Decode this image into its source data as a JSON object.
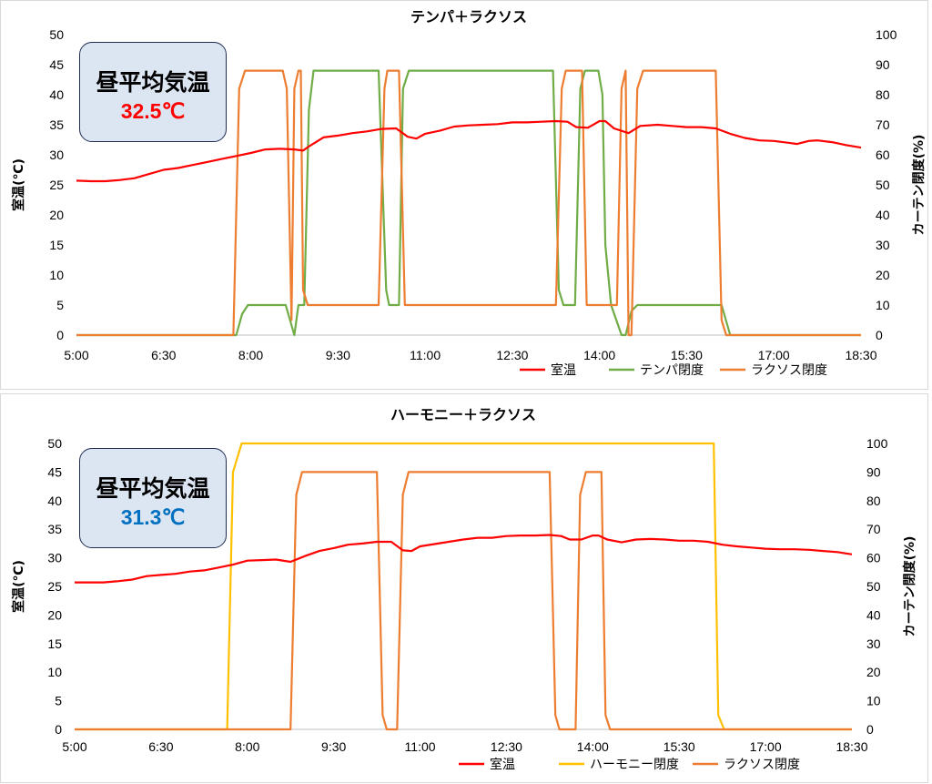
{
  "chart_data": [
    {
      "type": "line",
      "title": "テンパ＋ラクソス",
      "ylabel_left": "室温(℃)",
      "ylabel_right": "カーテン閉度(%)",
      "y_left_lim": [
        0,
        50
      ],
      "y_left_ticks": [
        "0",
        "5",
        "10",
        "15",
        "20",
        "25",
        "30",
        "35",
        "40",
        "45",
        "50"
      ],
      "y_right_lim": [
        0,
        100
      ],
      "y_right_ticks": [
        "0",
        "10",
        "20",
        "30",
        "40",
        "50",
        "60",
        "70",
        "80",
        "90",
        "100"
      ],
      "x_range_hours": [
        5,
        18.5
      ],
      "x_ticks": [
        {
          "h": 5,
          "label": "5:00"
        },
        {
          "h": 6.5,
          "label": "6:30"
        },
        {
          "h": 8,
          "label": "8:00"
        },
        {
          "h": 9.5,
          "label": "9:30"
        },
        {
          "h": 11,
          "label": "11:00"
        },
        {
          "h": 12.5,
          "label": "12:30"
        },
        {
          "h": 14,
          "label": "14:00"
        },
        {
          "h": 15.5,
          "label": "15:30"
        },
        {
          "h": 17,
          "label": "17:00"
        },
        {
          "h": 18.5,
          "label": "18:30"
        }
      ],
      "grid": "none",
      "legend_position": "bottom-right",
      "annotation": {
        "label": "昼平均気温",
        "value": "32.5℃",
        "color": "#ff0000"
      },
      "series": [
        {
          "name": "室温",
          "axis": "left",
          "color": "#ff0000",
          "points": [
            [
              5.0,
              25.7
            ],
            [
              5.25,
              25.6
            ],
            [
              5.5,
              25.6
            ],
            [
              5.75,
              25.8
            ],
            [
              6.0,
              26.1
            ],
            [
              6.25,
              26.8
            ],
            [
              6.5,
              27.5
            ],
            [
              6.75,
              27.8
            ],
            [
              7.0,
              28.3
            ],
            [
              7.25,
              28.8
            ],
            [
              7.5,
              29.3
            ],
            [
              7.75,
              29.8
            ],
            [
              8.0,
              30.3
            ],
            [
              8.25,
              30.9
            ],
            [
              8.5,
              31.0
            ],
            [
              8.75,
              30.9
            ],
            [
              8.9,
              30.7
            ],
            [
              9.0,
              31.4
            ],
            [
              9.25,
              32.9
            ],
            [
              9.5,
              33.2
            ],
            [
              9.75,
              33.6
            ],
            [
              10.0,
              33.9
            ],
            [
              10.25,
              34.3
            ],
            [
              10.5,
              34.4
            ],
            [
              10.7,
              33.0
            ],
            [
              10.85,
              32.7
            ],
            [
              11.0,
              33.5
            ],
            [
              11.25,
              34.0
            ],
            [
              11.5,
              34.7
            ],
            [
              11.75,
              34.9
            ],
            [
              12.0,
              35.0
            ],
            [
              12.25,
              35.1
            ],
            [
              12.5,
              35.4
            ],
            [
              12.75,
              35.4
            ],
            [
              13.0,
              35.5
            ],
            [
              13.25,
              35.6
            ],
            [
              13.45,
              35.5
            ],
            [
              13.6,
              34.6
            ],
            [
              13.8,
              34.5
            ],
            [
              14.0,
              35.6
            ],
            [
              14.1,
              35.6
            ],
            [
              14.25,
              34.4
            ],
            [
              14.5,
              33.6
            ],
            [
              14.7,
              34.8
            ],
            [
              15.0,
              35.0
            ],
            [
              15.25,
              34.8
            ],
            [
              15.5,
              34.6
            ],
            [
              15.75,
              34.6
            ],
            [
              16.0,
              34.4
            ],
            [
              16.25,
              33.5
            ],
            [
              16.5,
              32.8
            ],
            [
              16.75,
              32.4
            ],
            [
              17.0,
              32.3
            ],
            [
              17.25,
              32.0
            ],
            [
              17.4,
              31.8
            ],
            [
              17.6,
              32.3
            ],
            [
              17.75,
              32.4
            ],
            [
              18.0,
              32.1
            ],
            [
              18.25,
              31.6
            ],
            [
              18.5,
              31.2
            ]
          ]
        },
        {
          "name": "テンパ閉度",
          "axis": "right",
          "color": "#70ad47",
          "points": [
            [
              5.0,
              0
            ],
            [
              7.2,
              0
            ],
            [
              7.75,
              0
            ],
            [
              7.85,
              7
            ],
            [
              7.95,
              10
            ],
            [
              8.6,
              10
            ],
            [
              8.75,
              0
            ],
            [
              8.82,
              10
            ],
            [
              8.92,
              10
            ],
            [
              9.0,
              75
            ],
            [
              9.08,
              88
            ],
            [
              10.2,
              88
            ],
            [
              10.33,
              15
            ],
            [
              10.38,
              10
            ],
            [
              10.55,
              10
            ],
            [
              10.62,
              82
            ],
            [
              10.72,
              88
            ],
            [
              13.2,
              88
            ],
            [
              13.3,
              15
            ],
            [
              13.38,
              10
            ],
            [
              13.58,
              10
            ],
            [
              13.67,
              82
            ],
            [
              13.75,
              88
            ],
            [
              13.98,
              88
            ],
            [
              14.05,
              80
            ],
            [
              14.1,
              30
            ],
            [
              14.2,
              10
            ],
            [
              14.38,
              0
            ],
            [
              14.45,
              0
            ],
            [
              14.55,
              8
            ],
            [
              14.65,
              10
            ],
            [
              16.1,
              10
            ],
            [
              16.25,
              0
            ],
            [
              18.5,
              0
            ]
          ]
        },
        {
          "name": "ラクソス閉度",
          "axis": "right",
          "color": "#ed7d31",
          "points": [
            [
              5.0,
              0
            ],
            [
              7.7,
              0
            ],
            [
              7.8,
              82
            ],
            [
              7.9,
              88
            ],
            [
              8.55,
              88
            ],
            [
              8.62,
              82
            ],
            [
              8.7,
              5
            ],
            [
              8.75,
              82
            ],
            [
              8.82,
              88
            ],
            [
              8.86,
              88
            ],
            [
              8.9,
              15
            ],
            [
              8.98,
              10
            ],
            [
              10.2,
              10
            ],
            [
              10.3,
              82
            ],
            [
              10.35,
              88
            ],
            [
              10.55,
              88
            ],
            [
              10.65,
              10
            ],
            [
              13.25,
              10
            ],
            [
              13.35,
              82
            ],
            [
              13.42,
              88
            ],
            [
              13.7,
              88
            ],
            [
              13.78,
              10
            ],
            [
              14.0,
              10
            ],
            [
              14.3,
              10
            ],
            [
              14.38,
              82
            ],
            [
              14.45,
              88
            ],
            [
              14.5,
              0
            ],
            [
              14.55,
              0
            ],
            [
              14.65,
              82
            ],
            [
              14.75,
              88
            ],
            [
              16.0,
              88
            ],
            [
              16.1,
              5
            ],
            [
              16.18,
              0
            ],
            [
              18.5,
              0
            ]
          ]
        }
      ]
    },
    {
      "type": "line",
      "title": "ハーモニー＋ラクソス",
      "ylabel_left": "室温(℃)",
      "ylabel_right": "カーテン閉度(%)",
      "y_left_lim": [
        0,
        50
      ],
      "y_left_ticks": [
        "0",
        "5",
        "10",
        "15",
        "20",
        "25",
        "30",
        "35",
        "40",
        "45",
        "50"
      ],
      "y_right_lim": [
        0,
        100
      ],
      "y_right_ticks": [
        "0",
        "10",
        "20",
        "30",
        "40",
        "50",
        "60",
        "70",
        "80",
        "90",
        "100"
      ],
      "x_range_hours": [
        5,
        18.5
      ],
      "x_ticks": [
        {
          "h": 5,
          "label": "5:00"
        },
        {
          "h": 6.5,
          "label": "6:30"
        },
        {
          "h": 8,
          "label": "8:00"
        },
        {
          "h": 9.5,
          "label": "9:30"
        },
        {
          "h": 11,
          "label": "11:00"
        },
        {
          "h": 12.5,
          "label": "12:30"
        },
        {
          "h": 14,
          "label": "14:00"
        },
        {
          "h": 15.5,
          "label": "15:30"
        },
        {
          "h": 17,
          "label": "17:00"
        },
        {
          "h": 18.5,
          "label": "18:30"
        }
      ],
      "grid": "none",
      "legend_position": "bottom-right",
      "annotation": {
        "label": "昼平均気温",
        "value": "31.3℃",
        "color": "#0070c0"
      },
      "series": [
        {
          "name": "室温",
          "axis": "left",
          "color": "#ff0000",
          "points": [
            [
              5.0,
              25.7
            ],
            [
              5.25,
              25.7
            ],
            [
              5.5,
              25.7
            ],
            [
              5.75,
              25.9
            ],
            [
              6.0,
              26.2
            ],
            [
              6.25,
              26.8
            ],
            [
              6.5,
              27.0
            ],
            [
              6.75,
              27.2
            ],
            [
              7.0,
              27.6
            ],
            [
              7.25,
              27.8
            ],
            [
              7.5,
              28.3
            ],
            [
              7.75,
              28.8
            ],
            [
              8.0,
              29.5
            ],
            [
              8.25,
              29.6
            ],
            [
              8.5,
              29.7
            ],
            [
              8.75,
              29.3
            ],
            [
              9.0,
              30.3
            ],
            [
              9.25,
              31.2
            ],
            [
              9.5,
              31.7
            ],
            [
              9.75,
              32.3
            ],
            [
              10.0,
              32.5
            ],
            [
              10.25,
              32.8
            ],
            [
              10.5,
              32.8
            ],
            [
              10.7,
              31.3
            ],
            [
              10.85,
              31.2
            ],
            [
              11.0,
              32.0
            ],
            [
              11.25,
              32.4
            ],
            [
              11.5,
              32.8
            ],
            [
              11.75,
              33.2
            ],
            [
              12.0,
              33.5
            ],
            [
              12.25,
              33.5
            ],
            [
              12.5,
              33.8
            ],
            [
              12.75,
              33.9
            ],
            [
              13.0,
              33.9
            ],
            [
              13.25,
              34.0
            ],
            [
              13.45,
              33.8
            ],
            [
              13.6,
              33.2
            ],
            [
              13.8,
              33.2
            ],
            [
              14.0,
              33.9
            ],
            [
              14.1,
              33.9
            ],
            [
              14.25,
              33.2
            ],
            [
              14.5,
              32.7
            ],
            [
              14.75,
              33.2
            ],
            [
              15.0,
              33.3
            ],
            [
              15.25,
              33.2
            ],
            [
              15.5,
              33.0
            ],
            [
              15.75,
              33.0
            ],
            [
              16.0,
              32.8
            ],
            [
              16.25,
              32.3
            ],
            [
              16.5,
              32.0
            ],
            [
              16.75,
              31.8
            ],
            [
              17.0,
              31.6
            ],
            [
              17.25,
              31.5
            ],
            [
              17.5,
              31.5
            ],
            [
              17.75,
              31.4
            ],
            [
              18.0,
              31.2
            ],
            [
              18.25,
              31.0
            ],
            [
              18.5,
              30.6
            ]
          ]
        },
        {
          "name": "ハーモニー閉度",
          "axis": "right",
          "color": "#ffc000",
          "points": [
            [
              5.0,
              0
            ],
            [
              7.65,
              0
            ],
            [
              7.75,
              90
            ],
            [
              7.9,
              100
            ],
            [
              16.1,
              100
            ],
            [
              16.18,
              5
            ],
            [
              16.28,
              0
            ],
            [
              18.5,
              0
            ]
          ]
        },
        {
          "name": "ラクソス閉度",
          "axis": "right",
          "color": "#ed7d31",
          "points": [
            [
              5.0,
              0
            ],
            [
              8.75,
              0
            ],
            [
              8.85,
              82
            ],
            [
              8.95,
              90
            ],
            [
              10.25,
              90
            ],
            [
              10.35,
              5
            ],
            [
              10.42,
              0
            ],
            [
              10.6,
              0
            ],
            [
              10.7,
              82
            ],
            [
              10.8,
              90
            ],
            [
              13.25,
              90
            ],
            [
              13.35,
              5
            ],
            [
              13.42,
              0
            ],
            [
              13.7,
              0
            ],
            [
              13.78,
              82
            ],
            [
              13.88,
              90
            ],
            [
              14.15,
              90
            ],
            [
              14.22,
              5
            ],
            [
              14.3,
              0
            ],
            [
              18.5,
              0
            ]
          ]
        }
      ]
    }
  ]
}
